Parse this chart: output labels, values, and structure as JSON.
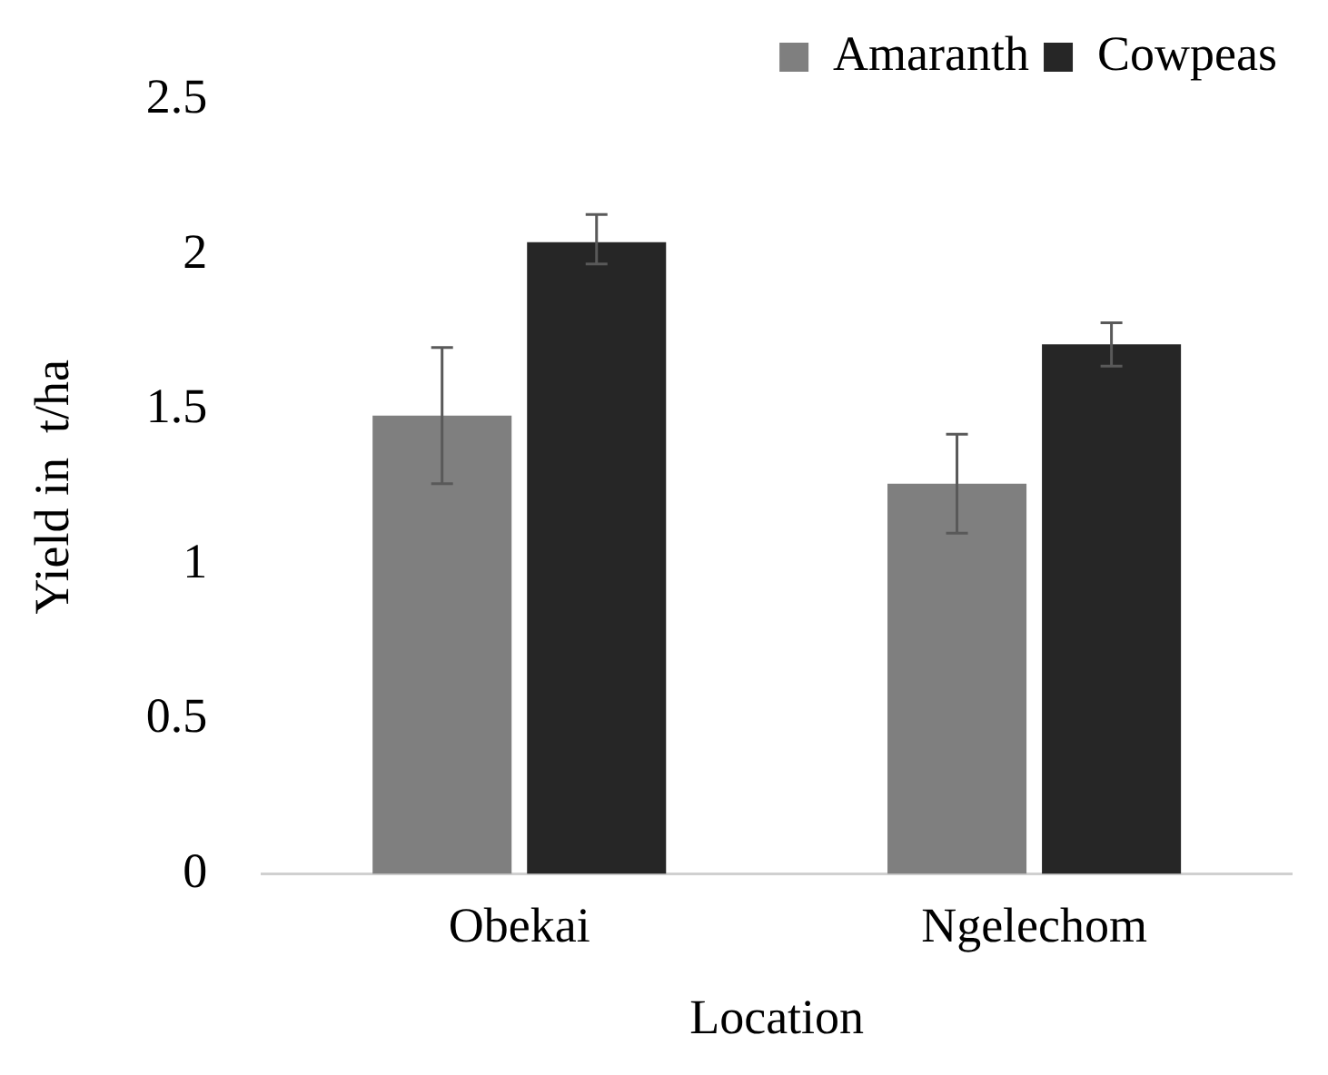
{
  "chart_data": {
    "type": "bar",
    "xlabel": "Location",
    "ylabel": "Yield in  t/ha",
    "categories": [
      "Obekai",
      "Ngelechom"
    ],
    "series": [
      {
        "name": "Amaranth",
        "color": "#7f7f7f",
        "values": [
          1.48,
          1.26
        ],
        "errors": [
          [
            1.26,
            1.7
          ],
          [
            1.1,
            1.42
          ]
        ]
      },
      {
        "name": "Cowpeas",
        "color": "#262626",
        "values": [
          2.04,
          1.71
        ],
        "errors": [
          [
            1.97,
            2.13
          ],
          [
            1.64,
            1.78
          ]
        ]
      }
    ],
    "ylim": [
      0,
      2.5
    ],
    "yticks": [
      0,
      0.5,
      1,
      1.5,
      2,
      2.5
    ],
    "grid": false,
    "legend": "top right"
  }
}
